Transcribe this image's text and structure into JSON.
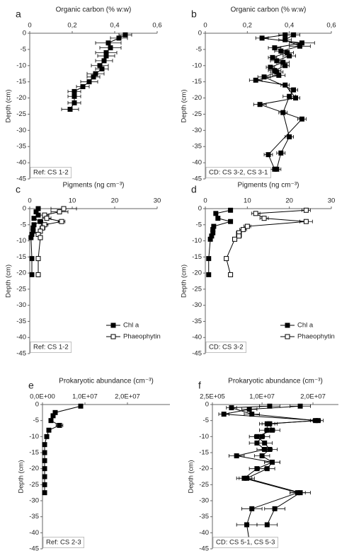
{
  "chart_data": [
    {
      "type": "line",
      "panel_label": "a",
      "title": "Organic carbon (% w:w)",
      "y_label": "Depth (cm)",
      "annotation": "Ref: CS 1-2",
      "xlim": [
        0,
        0.6
      ],
      "xticks": [
        0,
        {
          "value": 0.2,
          "label": "0,2"
        },
        {
          "value": 0.4,
          "label": "0,4"
        },
        {
          "value": 0.6,
          "label": "0,6"
        }
      ],
      "ylim": [
        -45,
        0
      ],
      "yticks": [
        0,
        -5,
        -10,
        -15,
        -20,
        -25,
        -30,
        -35,
        -40,
        -45
      ],
      "series": [
        {
          "color": "#000000",
          "fill": "#000000",
          "x": [
            0.45,
            0.42,
            0.37,
            0.38,
            0.36,
            0.36,
            0.35,
            0.33,
            0.34,
            0.31,
            0.3,
            0.28,
            0.25,
            0.21,
            0.21,
            0.21,
            0.19
          ],
          "y": [
            -0.5,
            -1.5,
            -3,
            -4.5,
            -6,
            -7,
            -8.5,
            -10,
            -11,
            -12.5,
            -13.5,
            -15,
            -16.5,
            -18,
            -19.5,
            -21.5,
            -23.5
          ],
          "xerr": [
            0.03,
            0.04,
            0.06,
            0.05,
            0.05,
            0.04,
            0.04,
            0.04,
            0.03,
            0.04,
            0.03,
            0.04,
            0.03,
            0.03,
            0.03,
            0.03,
            0.04
          ]
        }
      ]
    },
    {
      "type": "line",
      "panel_label": "b",
      "title": "Organic carbon (% w:w)",
      "y_label": "Depth (cm)",
      "annotation": "CD: CS 3-2, CS 3-1",
      "xlim": [
        0,
        0.6
      ],
      "xticks": [
        0,
        {
          "value": 0.2,
          "label": "0,2"
        },
        {
          "value": 0.4,
          "label": "0,4"
        },
        {
          "value": 0.6,
          "label": "0,6"
        }
      ],
      "ylim": [
        -45,
        0
      ],
      "yticks": [
        0,
        -5,
        -10,
        -15,
        -20,
        -25,
        -30,
        -35,
        -40,
        -45
      ],
      "series": [
        {
          "color": "#000000",
          "fill": "#000000",
          "x": [
            0.42,
            0.38,
            0.45,
            0.36,
            0.4,
            0.34,
            0.38,
            0.33,
            0.35,
            0.24,
            0.38,
            0.43,
            0.26,
            0.46,
            0.3,
            0.33
          ],
          "y": [
            -0.5,
            -2,
            -4,
            -5.5,
            -7,
            -8.5,
            -10,
            -11.5,
            -13,
            -14.5,
            -16,
            -20,
            -22,
            -26.5,
            -37.5,
            -42
          ],
          "xerr": [
            0.03,
            0.03,
            0.05,
            0.03,
            0.03,
            0.03,
            0.02,
            0.03,
            0.03,
            0.03,
            0.02,
            0.02,
            0.03,
            0.02,
            0.02,
            0.02
          ]
        },
        {
          "color": "#000000",
          "fill": "#000000",
          "x": [
            0.38,
            0.27,
            0.46,
            0.33,
            0.39,
            0.32,
            0.37,
            0.31,
            0.34,
            0.28,
            0.42,
            0.4,
            0.37,
            0.4,
            0.36,
            0.34
          ],
          "y": [
            -0.5,
            -1.5,
            -3,
            -4.5,
            -6,
            -7.5,
            -9,
            -10.5,
            -12,
            -13.5,
            -17.5,
            -19.5,
            -24.5,
            -32,
            -37,
            -42
          ],
          "xerr": [
            0.03,
            0.03,
            0.06,
            0.03,
            0.03,
            0.02,
            0.03,
            0.02,
            0.03,
            0.03,
            0.02,
            0.03,
            0.02,
            0.02,
            0.02,
            0.02
          ]
        }
      ]
    },
    {
      "type": "line",
      "panel_label": "c",
      "title": "Pigments (ng cm⁻³)",
      "y_label": "Depth (cm)",
      "annotation": "Ref: CS 1-2",
      "xlim": [
        0,
        30
      ],
      "xticks": [
        0,
        10,
        20,
        30
      ],
      "ylim": [
        -45,
        0
      ],
      "yticks": [
        0,
        -5,
        -10,
        -15,
        -20,
        -25,
        -30,
        -35,
        -40,
        -45
      ],
      "series": [
        {
          "name": "Chl a",
          "color": "#000000",
          "fill": "#000000",
          "x": [
            2,
            1.5,
            2,
            1,
            2.5,
            1,
            0.8,
            0.8,
            0.5,
            0.3,
            0.5,
            0.5
          ],
          "y": [
            0,
            -1,
            -2,
            -3,
            -4,
            -5,
            -6,
            -7,
            -8,
            -9,
            -15.5,
            -20.5
          ],
          "xerr": [
            0.5,
            0.4,
            0.5,
            0.3,
            0.6,
            0.3,
            0.2,
            0.2,
            0.2,
            0.1,
            0.2,
            0.2
          ]
        },
        {
          "name": "Phaeophytin",
          "color": "#000000",
          "fill": "#ffffff",
          "x": [
            8,
            7,
            3.5,
            4,
            7.5,
            3.5,
            3,
            2.5,
            2,
            2.5,
            2,
            2
          ],
          "y": [
            0,
            -1,
            -2,
            -3,
            -4,
            -5,
            -6,
            -7,
            -8,
            -9,
            -15.5,
            -20.5
          ],
          "xerr": [
            3,
            2,
            1,
            1,
            0.8,
            0.8,
            0.6,
            0.5,
            0.5,
            0.5,
            0.4,
            0.4
          ]
        }
      ]
    },
    {
      "type": "line",
      "panel_label": "d",
      "title": "Pigments (ng cm⁻³)",
      "y_label": "Depth (cm)",
      "annotation": "CD: CS 3-2",
      "xlim": [
        0,
        30
      ],
      "xticks": [
        0,
        10,
        20,
        30
      ],
      "ylim": [
        -45,
        0
      ],
      "yticks": [
        0,
        -5,
        -10,
        -15,
        -20,
        -25,
        -30,
        -35,
        -40,
        -45
      ],
      "series": [
        {
          "name": "Chl a",
          "color": "#000000",
          "fill": "#000000",
          "x": [
            6,
            2.5,
            3,
            6,
            2,
            1.8,
            1.8,
            1.5,
            1.2,
            0.8,
            0.8
          ],
          "y": [
            -0.5,
            -1.5,
            -3,
            -4,
            -5.5,
            -6.5,
            -7.5,
            -8.5,
            -9.5,
            -15.5,
            -20.5
          ],
          "xerr": [
            0.5,
            0.4,
            0.4,
            0.5,
            0.3,
            0.3,
            0.3,
            0.2,
            0.2,
            0.2,
            0.2
          ]
        },
        {
          "name": "Phaeophytin",
          "color": "#000000",
          "fill": "#ffffff",
          "x": [
            24,
            12,
            14,
            24,
            10,
            9,
            8,
            8,
            7,
            5,
            6
          ],
          "y": [
            -0.5,
            -1.5,
            -3,
            -4,
            -5.5,
            -6.5,
            -7.5,
            -8.5,
            -9.5,
            -15.5,
            -20.5
          ],
          "xerr": [
            1,
            1,
            1,
            1.5,
            0.8,
            0.8,
            0.6,
            0.6,
            0.5,
            0.4,
            0.4
          ]
        }
      ]
    },
    {
      "type": "line",
      "panel_label": "e",
      "title": "Prokaryotic abundance (cm⁻³)",
      "y_label": "Depth (cm)",
      "annotation": "Ref: CS 2-3",
      "xlim": [
        0,
        30000000
      ],
      "xticks": [
        {
          "value": 0,
          "label": "0,0E+00"
        },
        {
          "value": 10000000,
          "label": "1,0E+07"
        },
        {
          "value": 20000000,
          "label": "2,0E+07"
        }
      ],
      "ylim": [
        -45,
        0
      ],
      "yticks": [
        0,
        -5,
        -10,
        -15,
        -20,
        -25,
        -30,
        -35,
        -40,
        -45
      ],
      "series": [
        {
          "color": "#000000",
          "fill": "#000000",
          "x": [
            9000000,
            3000000,
            2500000,
            2000000,
            4000000,
            1500000,
            1000000,
            500000,
            500000,
            500000,
            500000,
            500000,
            500000,
            500000
          ],
          "y": [
            -0.5,
            -2.5,
            -3.5,
            -5,
            -6.5,
            -8,
            -10,
            -12.5,
            -15,
            -17.5,
            -20,
            -22.5,
            -25,
            -27.5
          ],
          "xerr": [
            500000,
            300000,
            300000,
            300000,
            800000,
            200000,
            100000,
            100000,
            100000,
            100000,
            100000,
            100000,
            100000,
            100000
          ]
        }
      ]
    },
    {
      "type": "line",
      "panel_label": "f",
      "title": "Prokaryotic abundance (cm⁻³)",
      "y_label": "Depth (cm)",
      "annotation": "CD: CS 5-1, CS 5-3",
      "xlim": [
        250000,
        25000000
      ],
      "xticks": [
        {
          "value": 250000,
          "label": "2,5E+05"
        },
        {
          "value": 10000000,
          "label": "1,0E+07"
        },
        {
          "value": 20000000,
          "label": "2,0E+07"
        }
      ],
      "ylim": [
        -45,
        0
      ],
      "yticks": [
        0,
        -5,
        -10,
        -15,
        -20,
        -25,
        -30,
        -35,
        -40,
        -45
      ],
      "series": [
        {
          "color": "#000000",
          "fill": "#000000",
          "x": [
            11500000,
            4000000,
            8000000,
            20500000,
            11500000,
            12000000,
            9000000,
            10500000,
            11500000,
            10000000,
            12000000,
            9000000,
            6500000,
            17000000,
            8000000,
            7000000,
            7500000
          ],
          "y": [
            -0.5,
            -1,
            -3,
            -5,
            -6,
            -8,
            -10,
            -12,
            -14,
            -16,
            -18,
            -20,
            -23,
            -27.5,
            -32.5,
            -37.5,
            -42.5
          ],
          "xerr": [
            2000000,
            1000000,
            1500000,
            1000000,
            1500000,
            1500000,
            1500000,
            1500000,
            1500000,
            1500000,
            1500000,
            1500000,
            1500000,
            1500000,
            2000000,
            2000000,
            1500000
          ]
        },
        {
          "color": "#000000",
          "fill": "#000000",
          "x": [
            17500000,
            7500000,
            2500000,
            21000000,
            11000000,
            11000000,
            10000000,
            9000000,
            10500000,
            5000000,
            12000000,
            11000000,
            7000000,
            17500000,
            12500000,
            11000000
          ],
          "y": [
            -0.5,
            -1.5,
            -3,
            -5,
            -6,
            -8,
            -10,
            -12,
            -14,
            -16,
            -18,
            -20,
            -23,
            -27.5,
            -32.5,
            -37.5
          ],
          "xerr": [
            2000000,
            1500000,
            1000000,
            1000000,
            1500000,
            1500000,
            1500000,
            1500000,
            1500000,
            1500000,
            1500000,
            1500000,
            1500000,
            2000000,
            2000000,
            2000000
          ]
        }
      ]
    }
  ]
}
